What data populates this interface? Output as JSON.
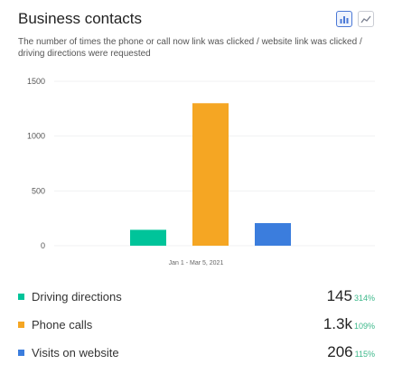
{
  "header": {
    "title": "Business contacts",
    "toggles": [
      {
        "icon": "bar-chart-icon",
        "active": true
      },
      {
        "icon": "line-chart-icon",
        "active": false
      }
    ]
  },
  "description": "The number of times the phone or call now link was clicked / website link was clicked / driving directions were requested",
  "chart_data": {
    "type": "bar",
    "categories": [
      "Driving directions",
      "Phone calls",
      "Visits on website"
    ],
    "values": [
      145,
      1300,
      206
    ],
    "colors": [
      "#00c49a",
      "#f5a623",
      "#3b7ddd"
    ],
    "yticks": [
      0,
      500,
      1000,
      1500
    ],
    "ylim": [
      0,
      1500
    ],
    "xlabel": "Jan 1 - Mar 5, 2021",
    "grid": true
  },
  "legend": [
    {
      "label": "Driving directions",
      "value": "145",
      "change": "314%",
      "color": "#00c49a"
    },
    {
      "label": "Phone calls",
      "value": "1.3k",
      "change": "109%",
      "color": "#f5a623"
    },
    {
      "label": "Visits on website",
      "value": "206",
      "change": "115%",
      "color": "#3b7ddd"
    }
  ]
}
